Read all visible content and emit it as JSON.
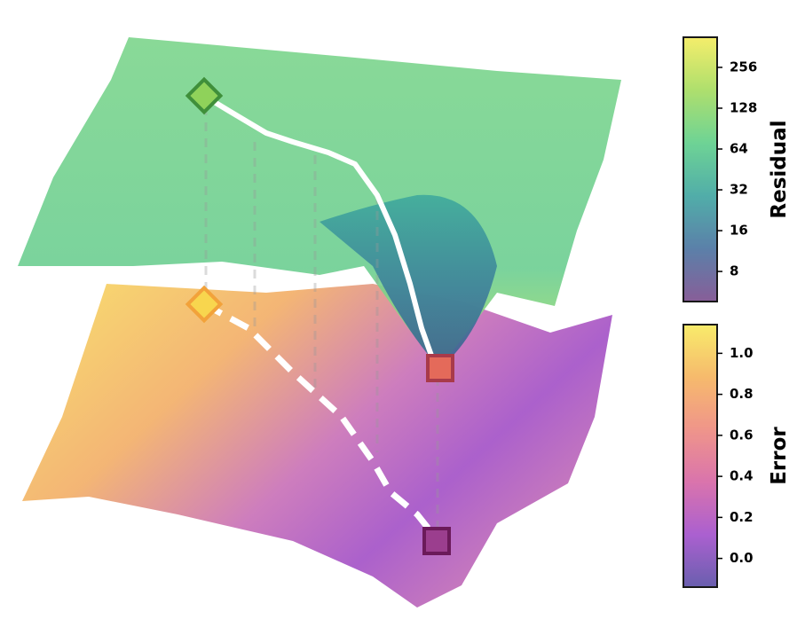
{
  "chart_data": {
    "type": "surface",
    "colorbars": [
      {
        "label": "Residual",
        "scale": "log",
        "lim": [
          4.8,
          427
        ],
        "ticks": [
          8,
          16,
          32,
          64,
          128,
          256
        ],
        "colors": [
          "#7b4d8e",
          "#4a73a0",
          "#3fa5a0",
          "#5fcf8a",
          "#a6dc5e",
          "#f4ec5c"
        ]
      },
      {
        "label": "Error",
        "scale": "linear",
        "lim": [
          -0.14,
          1.14
        ],
        "ticks": [
          {
            "value": 0,
            "label": "0.0"
          },
          0.2,
          0.4,
          0.6,
          0.8,
          {
            "value": 1,
            "label": "1.0"
          }
        ],
        "colors": [
          "#5a4ea6",
          "#a24fcb",
          "#d665a4",
          "#ee8a7e",
          "#f6b35d",
          "#f8ea5c"
        ]
      }
    ]
  }
}
